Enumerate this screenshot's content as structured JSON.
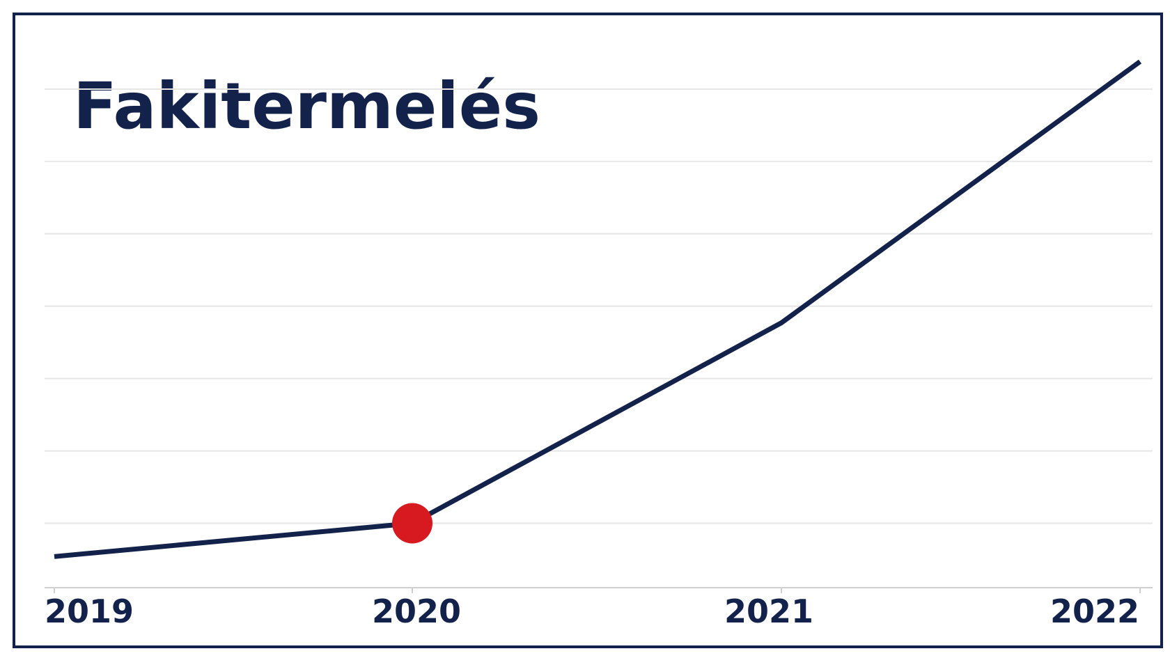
{
  "chart_data": {
    "type": "line",
    "title": "Fakitermelés",
    "categories": [
      "2019",
      "2020",
      "2021",
      "2022"
    ],
    "series": [
      {
        "color": "#13224a",
        "values": [
          0.54,
          1.0,
          3.77,
          7.38
        ]
      }
    ],
    "highlight_index": 1,
    "highlight_color": "#d71920",
    "ylim": [
      0.11,
      7.5
    ],
    "yticks": [
      1,
      2,
      3,
      4,
      5,
      6,
      7
    ],
    "grid": true
  }
}
